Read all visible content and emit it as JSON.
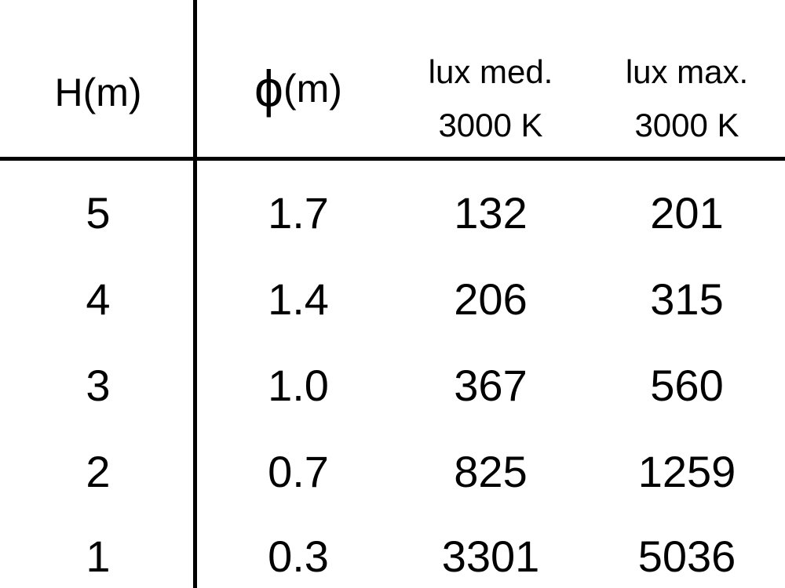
{
  "table": {
    "headers": [
      {
        "lines": [
          "H(m)"
        ]
      },
      {
        "symbol": "ϕ",
        "unit": "(m)"
      },
      {
        "lines": [
          "lux med.",
          "3000 K"
        ]
      },
      {
        "lines": [
          "lux max.",
          "3000 K"
        ]
      }
    ],
    "rows": [
      [
        "5",
        "1.7",
        "132",
        "201"
      ],
      [
        "4",
        "1.4",
        "206",
        "315"
      ],
      [
        "3",
        "1.0",
        "367",
        "560"
      ],
      [
        "2",
        "0.7",
        "825",
        "1259"
      ],
      [
        "1",
        "0.3",
        "3301",
        "5036"
      ]
    ]
  }
}
